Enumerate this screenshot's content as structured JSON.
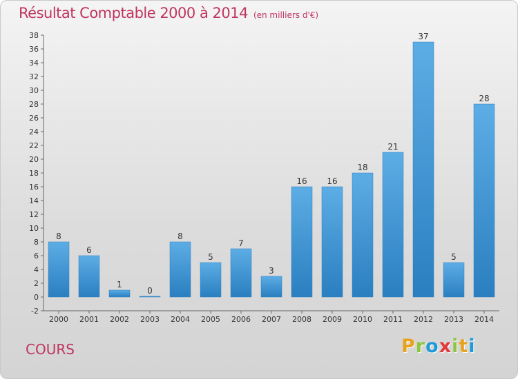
{
  "header": {
    "title": "Résultat Comptable 2000 à 2014",
    "subtitle": "(en milliers d'€)"
  },
  "footer": {
    "commune": "COURS",
    "logo": [
      "P",
      "r",
      "o",
      "x",
      "i",
      "t",
      "i"
    ]
  },
  "colors": {
    "title": "#c0345f",
    "bar_top": "#5dade5",
    "bar_bottom": "#2a7fc0",
    "logo": [
      "#e8a21c",
      "#8cc63f",
      "#1f9ad6",
      "#e23a3a",
      "#8cc63f",
      "#e8a21c",
      "#1f9ad6"
    ]
  },
  "chart_data": {
    "type": "bar",
    "title": "Résultat Comptable 2000 à 2014",
    "subtitle": "(en milliers d'€)",
    "categories": [
      "2000",
      "2001",
      "2002",
      "2003",
      "2004",
      "2005",
      "2006",
      "2007",
      "2008",
      "2009",
      "2010",
      "2011",
      "2012",
      "2013",
      "2014"
    ],
    "values": [
      8,
      6,
      1,
      0,
      8,
      5,
      7,
      3,
      16,
      16,
      18,
      21,
      37,
      5,
      28
    ],
    "yticks": [
      -2,
      0,
      2,
      4,
      6,
      8,
      10,
      12,
      14,
      16,
      18,
      20,
      22,
      24,
      26,
      28,
      30,
      32,
      34,
      36,
      38
    ],
    "ylim": [
      -2,
      38
    ],
    "grid": false,
    "legend": "none"
  }
}
